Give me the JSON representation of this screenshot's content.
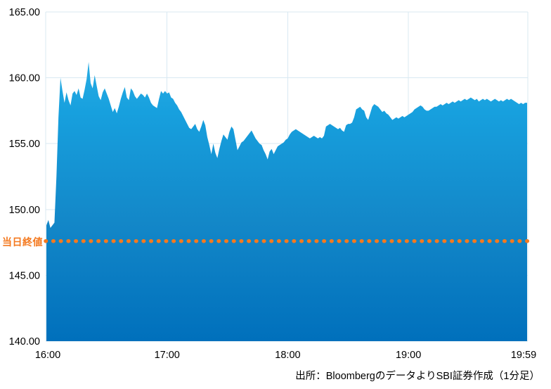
{
  "chart_data": {
    "type": "area",
    "title": "",
    "xlabel": "",
    "ylabel": "",
    "ylim": [
      140,
      165
    ],
    "grid": true,
    "legend": "none",
    "y_ticks": [
      {
        "value": 165,
        "label": "165.00"
      },
      {
        "value": 160,
        "label": "160.00"
      },
      {
        "value": 155,
        "label": "155.00"
      },
      {
        "value": 150,
        "label": "150.00"
      },
      {
        "value": 145,
        "label": "145.00"
      },
      {
        "value": 140,
        "label": "140.00"
      }
    ],
    "x_ticks": [
      {
        "minute": 0,
        "label": "16:00",
        "gridline": false
      },
      {
        "minute": 60,
        "label": "17:00",
        "gridline": true
      },
      {
        "minute": 120,
        "label": "18:00",
        "gridline": true
      },
      {
        "minute": 180,
        "label": "19:00",
        "gridline": true
      },
      {
        "minute": 239,
        "label": "19:59",
        "gridline": false
      }
    ],
    "x_start": "16:00",
    "x_end": "19:59",
    "x_interval_minutes": 1,
    "values": [
      148.8,
      149.2,
      148.6,
      148.8,
      149.0,
      152.5,
      157.0,
      160.0,
      159.0,
      158.1,
      158.9,
      158.3,
      157.9,
      158.8,
      159.0,
      158.7,
      159.2,
      158.5,
      158.4,
      159.1,
      159.9,
      161.2,
      159.6,
      159.2,
      160.2,
      159.4,
      158.6,
      158.3,
      158.9,
      159.2,
      158.8,
      158.4,
      157.9,
      157.4,
      157.7,
      157.3,
      157.8,
      158.4,
      158.9,
      159.3,
      158.5,
      158.3,
      159.2,
      159.0,
      158.6,
      158.4,
      158.6,
      158.8,
      158.7,
      158.5,
      158.8,
      158.5,
      158.1,
      157.9,
      157.8,
      157.7,
      158.4,
      159.0,
      158.8,
      159.0,
      158.8,
      158.9,
      158.5,
      158.4,
      158.1,
      157.9,
      157.6,
      157.4,
      157.1,
      156.8,
      156.5,
      156.2,
      156.1,
      156.3,
      156.5,
      156.1,
      155.9,
      156.3,
      156.8,
      156.4,
      155.5,
      154.9,
      154.2,
      155.0,
      154.3,
      153.9,
      154.6,
      155.2,
      155.7,
      155.5,
      155.3,
      155.9,
      156.3,
      156.1,
      155.3,
      154.5,
      154.8,
      155.1,
      155.2,
      155.4,
      155.6,
      155.8,
      156.0,
      155.7,
      155.4,
      155.2,
      155.0,
      154.9,
      154.5,
      154.2,
      153.8,
      154.4,
      154.6,
      154.2,
      154.5,
      154.8,
      154.9,
      155.0,
      155.1,
      155.3,
      155.4,
      155.7,
      155.9,
      156.0,
      156.1,
      156.0,
      155.9,
      155.8,
      155.7,
      155.6,
      155.5,
      155.4,
      155.5,
      155.6,
      155.5,
      155.4,
      155.5,
      155.4,
      155.6,
      156.3,
      156.4,
      156.5,
      156.4,
      156.3,
      156.2,
      156.1,
      156.2,
      156.0,
      155.9,
      156.4,
      156.5,
      156.5,
      156.6,
      157.0,
      157.6,
      157.7,
      157.8,
      157.6,
      157.5,
      157.0,
      156.8,
      157.3,
      157.8,
      158.0,
      157.9,
      157.8,
      157.6,
      157.4,
      157.5,
      157.3,
      157.2,
      157.0,
      156.8,
      156.9,
      157.0,
      156.9,
      157.0,
      157.1,
      157.0,
      157.1,
      157.2,
      157.3,
      157.4,
      157.6,
      157.7,
      157.8,
      157.9,
      157.8,
      157.6,
      157.5,
      157.5,
      157.6,
      157.7,
      157.8,
      157.8,
      157.9,
      158.0,
      157.9,
      158.0,
      158.1,
      158.0,
      158.1,
      158.2,
      158.1,
      158.2,
      158.3,
      158.2,
      158.3,
      158.4,
      158.3,
      158.4,
      158.5,
      158.4,
      158.3,
      158.4,
      158.2,
      158.3,
      158.4,
      158.3,
      158.4,
      158.3,
      158.2,
      158.3,
      158.4,
      158.3,
      158.2,
      158.3,
      158.2,
      158.3,
      158.4,
      158.3,
      158.4,
      158.3,
      158.2,
      158.1,
      158.0,
      158.1,
      158.0,
      158.1,
      158.1
    ],
    "close_line": {
      "label": "当日終値",
      "value": 147.6
    },
    "caption": "出所：BloombergのデータよりSBI証券作成（1分足）",
    "colors": {
      "area_top": "#29ade4",
      "area_upper": "#17a0de",
      "area_mid": "#1387c8",
      "area_bottom": "#0070bc",
      "grid": "#d8e8f2",
      "close_line": "#f4791f",
      "text": "#000000"
    }
  }
}
